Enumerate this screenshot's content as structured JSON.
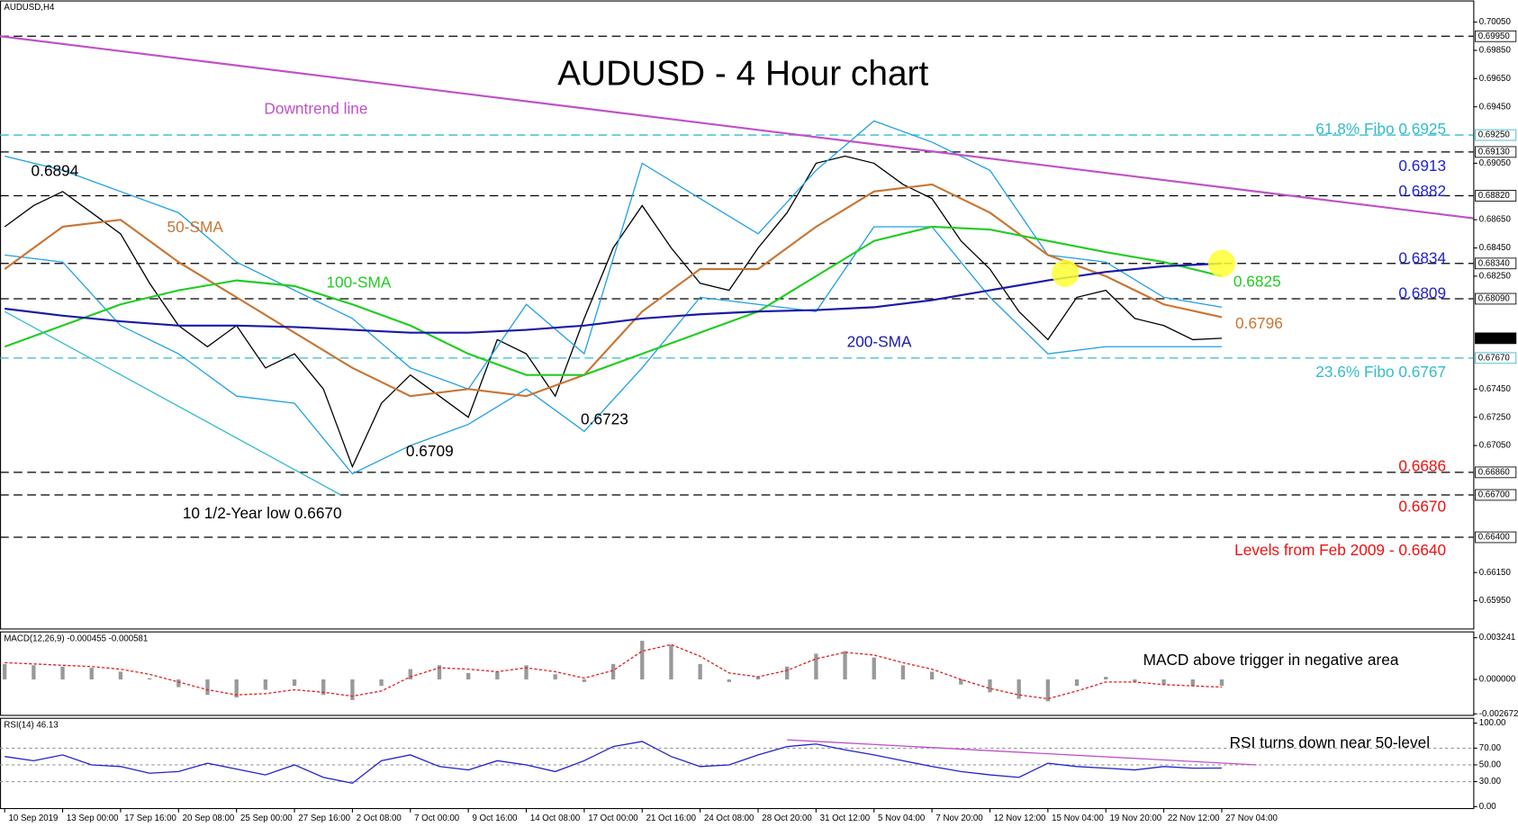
{
  "chart_data": [
    {
      "type": "line",
      "title": "AUDUSD - 4 Hour chart",
      "xlim": [
        -0.08,
        25.34
      ],
      "xticks": [
        {
          "value": 0,
          "label": "10 Sep 2019"
        },
        {
          "value": 1,
          "label": "13 Sep 00:00"
        },
        {
          "value": 2,
          "label": "17 Sep 16:00"
        },
        {
          "value": 3,
          "label": "20 Sep 08:00"
        },
        {
          "value": 4,
          "label": "25 Sep 00:00"
        },
        {
          "value": 5,
          "label": "27 Sep 16:00"
        },
        {
          "value": 6,
          "label": "2 Oct 08:00"
        },
        {
          "value": 7,
          "label": "7 Oct 00:00"
        },
        {
          "value": 8,
          "label": "9 Oct 16:00"
        },
        {
          "value": 9,
          "label": "14 Oct 08:00"
        },
        {
          "value": 10,
          "label": "17 Oct 00:00"
        },
        {
          "value": 11,
          "label": "21 Oct 16:00"
        },
        {
          "value": 12,
          "label": "24 Oct 08:00"
        },
        {
          "value": 13,
          "label": "28 Oct 20:00"
        },
        {
          "value": 14,
          "label": "31 Oct 12:00"
        },
        {
          "value": 15,
          "label": "5 Nov 04:00"
        },
        {
          "value": 16,
          "label": "7 Nov 20:00"
        },
        {
          "value": 17,
          "label": "12 Nov 12:00"
        },
        {
          "value": 18,
          "label": "15 Nov 04:00"
        },
        {
          "value": 19,
          "label": "19 Nov 20:00"
        },
        {
          "value": 20,
          "label": "22 Nov 12:00"
        },
        {
          "value": 21,
          "label": "27 Nov 04:00"
        }
      ],
      "ylim": [
        0.6575,
        0.702
      ],
      "yticks": [
        {
          "value": 0.7005,
          "label": "0.70050"
        },
        {
          "value": 0.6985,
          "label": "0.69850"
        },
        {
          "value": 0.6965,
          "label": "0.69650"
        },
        {
          "value": 0.6945,
          "label": "0.69450"
        },
        {
          "value": 0.6905,
          "label": "0.69050"
        },
        {
          "value": 0.6865,
          "label": "0.68650"
        },
        {
          "value": 0.6845,
          "label": "0.68450"
        },
        {
          "value": 0.6825,
          "label": "0.68250"
        },
        {
          "value": 0.6745,
          "label": "0.67450"
        },
        {
          "value": 0.6725,
          "label": "0.67250"
        },
        {
          "value": 0.6705,
          "label": "0.67050"
        },
        {
          "value": 0.6615,
          "label": "0.66150"
        },
        {
          "value": 0.6595,
          "label": "0.65950"
        }
      ],
      "levels": [
        {
          "value": 0.6995,
          "label": "0.69950",
          "color": "#000000"
        },
        {
          "value": 0.6925,
          "label": "0.69250",
          "color": "#33bbcc"
        },
        {
          "value": 0.6913,
          "label": "0.69130",
          "color": "#000000"
        },
        {
          "value": 0.6882,
          "label": "0.68820",
          "color": "#000000"
        },
        {
          "value": 0.6834,
          "label": "0.68340",
          "color": "#000000"
        },
        {
          "value": 0.6809,
          "label": "0.68090",
          "color": "#000000"
        },
        {
          "value": 0.6781,
          "label": "0.67813",
          "color": null
        },
        {
          "value": 0.6767,
          "label": "0.67670",
          "color": "#33bbcc"
        },
        {
          "value": 0.6686,
          "label": "0.66860",
          "color": "#000000"
        },
        {
          "value": 0.667,
          "label": "0.66700",
          "color": "#000000"
        },
        {
          "value": 0.664,
          "label": "0.66400",
          "color": "#000000"
        }
      ],
      "series": [
        {
          "name": "AUDUSD,H4",
          "color": "#000000",
          "x": [
            0,
            0.5,
            1,
            1.5,
            2,
            2.5,
            3,
            3.5,
            4,
            4.5,
            5,
            5.5,
            6,
            6.5,
            7,
            7.5,
            8,
            8.5,
            9,
            9.5,
            10,
            10.5,
            11,
            11.5,
            12,
            12.5,
            13,
            13.5,
            14,
            14.5,
            15,
            15.5,
            16,
            16.5,
            17,
            17.5,
            18,
            18.5,
            19,
            19.5,
            20,
            20.5,
            21
          ],
          "values": [
            0.686,
            0.6875,
            0.6885,
            0.687,
            0.6855,
            0.682,
            0.679,
            0.6775,
            0.679,
            0.676,
            0.677,
            0.6745,
            0.669,
            0.6735,
            0.6755,
            0.674,
            0.6725,
            0.678,
            0.677,
            0.674,
            0.6795,
            0.6845,
            0.6875,
            0.6845,
            0.682,
            0.6815,
            0.6845,
            0.687,
            0.6905,
            0.691,
            0.6905,
            0.689,
            0.688,
            0.685,
            0.683,
            0.68,
            0.678,
            0.681,
            0.6815,
            0.6795,
            0.679,
            0.678,
            0.6781
          ]
        },
        {
          "color": "#1ea0e6",
          "x": [
            0,
            1,
            2,
            3,
            4,
            5,
            6,
            7,
            8,
            9,
            10,
            11,
            12,
            13,
            14,
            15,
            16,
            17,
            18,
            19,
            20,
            21
          ],
          "values": [
            0.691,
            0.69,
            0.6885,
            0.687,
            0.6835,
            0.6815,
            0.6795,
            0.676,
            0.6745,
            0.6805,
            0.677,
            0.6905,
            0.688,
            0.6855,
            0.69,
            0.6935,
            0.692,
            0.69,
            0.684,
            0.6835,
            0.681,
            0.6803
          ]
        },
        {
          "color": "#1ea0e6",
          "x": [
            0,
            1,
            2,
            3,
            4,
            5,
            6,
            7,
            8,
            9,
            10,
            11,
            12,
            13,
            14,
            15,
            16,
            17,
            18,
            19,
            20,
            21
          ],
          "values": [
            0.684,
            0.6835,
            0.679,
            0.677,
            0.674,
            0.6735,
            0.6685,
            0.6705,
            0.672,
            0.6745,
            0.6715,
            0.676,
            0.681,
            0.6805,
            0.68,
            0.686,
            0.686,
            0.681,
            0.677,
            0.6775,
            0.6775,
            0.6775
          ]
        },
        {
          "name": "50-SMA",
          "color": "#c87533",
          "x": [
            0,
            1,
            2,
            3,
            4,
            5,
            6,
            7,
            8,
            9,
            10,
            11,
            12,
            13,
            14,
            15,
            16,
            17,
            18,
            19,
            20,
            21
          ],
          "values": [
            0.683,
            0.686,
            0.6865,
            0.6835,
            0.681,
            0.6785,
            0.676,
            0.674,
            0.6745,
            0.674,
            0.6755,
            0.68,
            0.683,
            0.683,
            0.686,
            0.6885,
            0.689,
            0.687,
            0.684,
            0.6825,
            0.6805,
            0.6796
          ]
        },
        {
          "name": "100-SMA",
          "color": "#22cc22",
          "x": [
            0,
            1,
            2,
            3,
            4,
            5,
            6,
            7,
            8,
            9,
            10,
            11,
            12,
            13,
            14,
            15,
            16,
            17,
            18,
            19,
            20,
            21
          ],
          "values": [
            0.6775,
            0.679,
            0.6805,
            0.6815,
            0.6822,
            0.6818,
            0.6805,
            0.679,
            0.677,
            0.6755,
            0.6755,
            0.677,
            0.6785,
            0.68,
            0.6825,
            0.685,
            0.686,
            0.6858,
            0.685,
            0.6842,
            0.6835,
            0.6825
          ]
        },
        {
          "name": "200-SMA",
          "color": "#1a1aa8",
          "x": [
            0,
            1,
            2,
            3,
            4,
            5,
            6,
            7,
            8,
            9,
            10,
            11,
            12,
            13,
            14,
            15,
            16,
            17,
            18,
            19,
            20,
            21
          ],
          "values": [
            0.6802,
            0.6797,
            0.6793,
            0.679,
            0.679,
            0.6789,
            0.6787,
            0.6785,
            0.6785,
            0.6787,
            0.679,
            0.6795,
            0.6798,
            0.68,
            0.6801,
            0.6803,
            0.6808,
            0.6815,
            0.6822,
            0.6828,
            0.6832,
            0.6834
          ]
        },
        {
          "name": "Downtrend line",
          "color": "#c050c8",
          "x": [
            -0.08,
            25.34
          ],
          "values": [
            0.6995,
            0.6866
          ]
        },
        {
          "color": "#33bbcc",
          "x": [
            0,
            5.8
          ],
          "values": [
            0.68,
            0.667
          ]
        }
      ],
      "highlights": {
        "color": "#ffff33",
        "x": [
          18.3,
          21.0
        ],
        "values": [
          0.6827,
          0.6834
        ]
      },
      "annotations": [
        {
          "text": "0.6894",
          "color": "#000000"
        },
        {
          "text": "0.6709",
          "color": "#000000"
        },
        {
          "text": "0.6723",
          "color": "#000000"
        },
        {
          "text": "10 1/2-Year low 0.6670",
          "color": "#000000"
        },
        {
          "text": "61.8% Fibo 0.6925",
          "color": "#33bbcc"
        },
        {
          "text": "0.6913",
          "color": "#2222cc"
        },
        {
          "text": "0.6882",
          "color": "#2222cc"
        },
        {
          "text": "0.6834",
          "color": "#2222cc"
        },
        {
          "text": "0.6825",
          "color": "#22cc22"
        },
        {
          "text": "0.6809",
          "color": "#2222cc"
        },
        {
          "text": "0.6796",
          "color": "#c87533"
        },
        {
          "text": "23.6% Fibo 0.6767",
          "color": "#33bbcc"
        },
        {
          "text": "0.6686",
          "color": "#ee1111"
        },
        {
          "text": "0.6670",
          "color": "#ee1111"
        },
        {
          "text": "Levels from Feb 2009 - 0.6640",
          "color": "#ee1111"
        }
      ]
    },
    {
      "type": "bar",
      "title": "MACD(12,26,9) -0.000455 -0.000581",
      "ylim": [
        -0.00279,
        0.00369
      ],
      "yticks": [
        0.003241,
        {
          "value": 0,
          "label": "0.000000"
        },
        -0.002672
      ],
      "series": [
        {
          "style": "bar",
          "color": "#999999",
          "x": [
            0,
            0.5,
            1,
            1.5,
            2,
            2.5,
            3,
            3.5,
            4,
            4.5,
            5,
            5.5,
            6,
            6.5,
            7,
            7.5,
            8,
            8.5,
            9,
            9.5,
            10,
            10.5,
            11,
            11.5,
            12,
            12.5,
            13,
            13.5,
            14,
            14.5,
            15,
            15.5,
            16,
            16.5,
            17,
            17.5,
            18,
            18.5,
            19,
            19.5,
            20,
            20.5,
            21
          ],
          "values": [
            0.0012,
            0.0011,
            0.001,
            0.0009,
            0.0006,
            0.0001,
            -0.0006,
            -0.0012,
            -0.0014,
            -0.0008,
            -0.0005,
            -0.0012,
            -0.0016,
            -0.0005,
            0.0008,
            0.0011,
            0.0005,
            0.0006,
            0.0011,
            0.0004,
            -0.0002,
            0.0012,
            0.003,
            0.0027,
            0.0012,
            -0.0002,
            0.0002,
            0.001,
            0.002,
            0.0022,
            0.0017,
            0.0011,
            0.0006,
            -0.0004,
            -0.001,
            -0.0015,
            -0.0017,
            -0.0005,
            0.0002,
            -0.0002,
            -0.0004,
            -0.0005,
            -0.0005
          ]
        },
        {
          "style": "dash",
          "color": "#e02020",
          "x": [
            0,
            0.5,
            1,
            1.5,
            2,
            2.5,
            3,
            3.5,
            4,
            4.5,
            5,
            5.5,
            6,
            6.5,
            7,
            7.5,
            8,
            8.5,
            9,
            9.5,
            10,
            10.5,
            11,
            11.5,
            12,
            12.5,
            13,
            13.5,
            14,
            14.5,
            15,
            15.5,
            16,
            16.5,
            17,
            17.5,
            18,
            18.5,
            19,
            19.5,
            20,
            20.5,
            21
          ],
          "values": [
            0.0013,
            0.0012,
            0.0011,
            0.001,
            0.0008,
            0.0004,
            -0.0002,
            -0.0008,
            -0.0012,
            -0.0011,
            -0.0008,
            -0.001,
            -0.0013,
            -0.0009,
            0.0002,
            0.0009,
            0.0008,
            0.0006,
            0.0009,
            0.0006,
            0.0001,
            0.0007,
            0.0022,
            0.0027,
            0.0018,
            0.0005,
            0.0002,
            0.0007,
            0.0016,
            0.0021,
            0.0019,
            0.0013,
            0.0008,
            0,
            -0.0007,
            -0.0012,
            -0.0015,
            -0.0009,
            -0.0002,
            -0.0002,
            -0.0004,
            -0.0005,
            -0.0006
          ]
        }
      ],
      "annotations": [
        {
          "text": "MACD above trigger in negative area",
          "color": "#000000"
        }
      ]
    },
    {
      "type": "line",
      "title": "RSI(14) 46.13",
      "ylim": [
        -2.3,
        105.8
      ],
      "yticks": [
        {
          "value": 100,
          "label": "100.00"
        },
        {
          "value": 70,
          "label": "70.00"
        },
        {
          "value": 50,
          "label": "50.00"
        },
        {
          "value": 30,
          "label": "30.00"
        },
        {
          "value": 0,
          "label": "0.00"
        }
      ],
      "grid": true,
      "series": [
        {
          "style": "line",
          "color": "#2222cc",
          "x": [
            0,
            0.5,
            1,
            1.5,
            2,
            2.5,
            3,
            3.5,
            4,
            4.5,
            5,
            5.5,
            6,
            6.5,
            7,
            7.5,
            8,
            8.5,
            9,
            9.5,
            10,
            10.5,
            11,
            11.5,
            12,
            12.5,
            13,
            13.5,
            14,
            14.5,
            15,
            15.5,
            16,
            16.5,
            17,
            17.5,
            18,
            18.5,
            19,
            19.5,
            20,
            20.5,
            21
          ],
          "values": [
            60,
            55,
            62,
            50,
            48,
            40,
            42,
            52,
            45,
            38,
            50,
            35,
            28,
            55,
            62,
            48,
            44,
            55,
            50,
            42,
            55,
            72,
            78,
            60,
            48,
            50,
            62,
            72,
            75,
            68,
            62,
            55,
            48,
            42,
            38,
            35,
            52,
            48,
            46,
            44,
            48,
            46,
            46.13
          ]
        },
        {
          "style": "line",
          "color": "#c050c8",
          "x": [
            13.5,
            21.6
          ],
          "values": [
            80,
            50
          ]
        }
      ],
      "annotations": [
        {
          "text": "RSI turns down near 50-level",
          "color": "#000000"
        }
      ]
    }
  ]
}
